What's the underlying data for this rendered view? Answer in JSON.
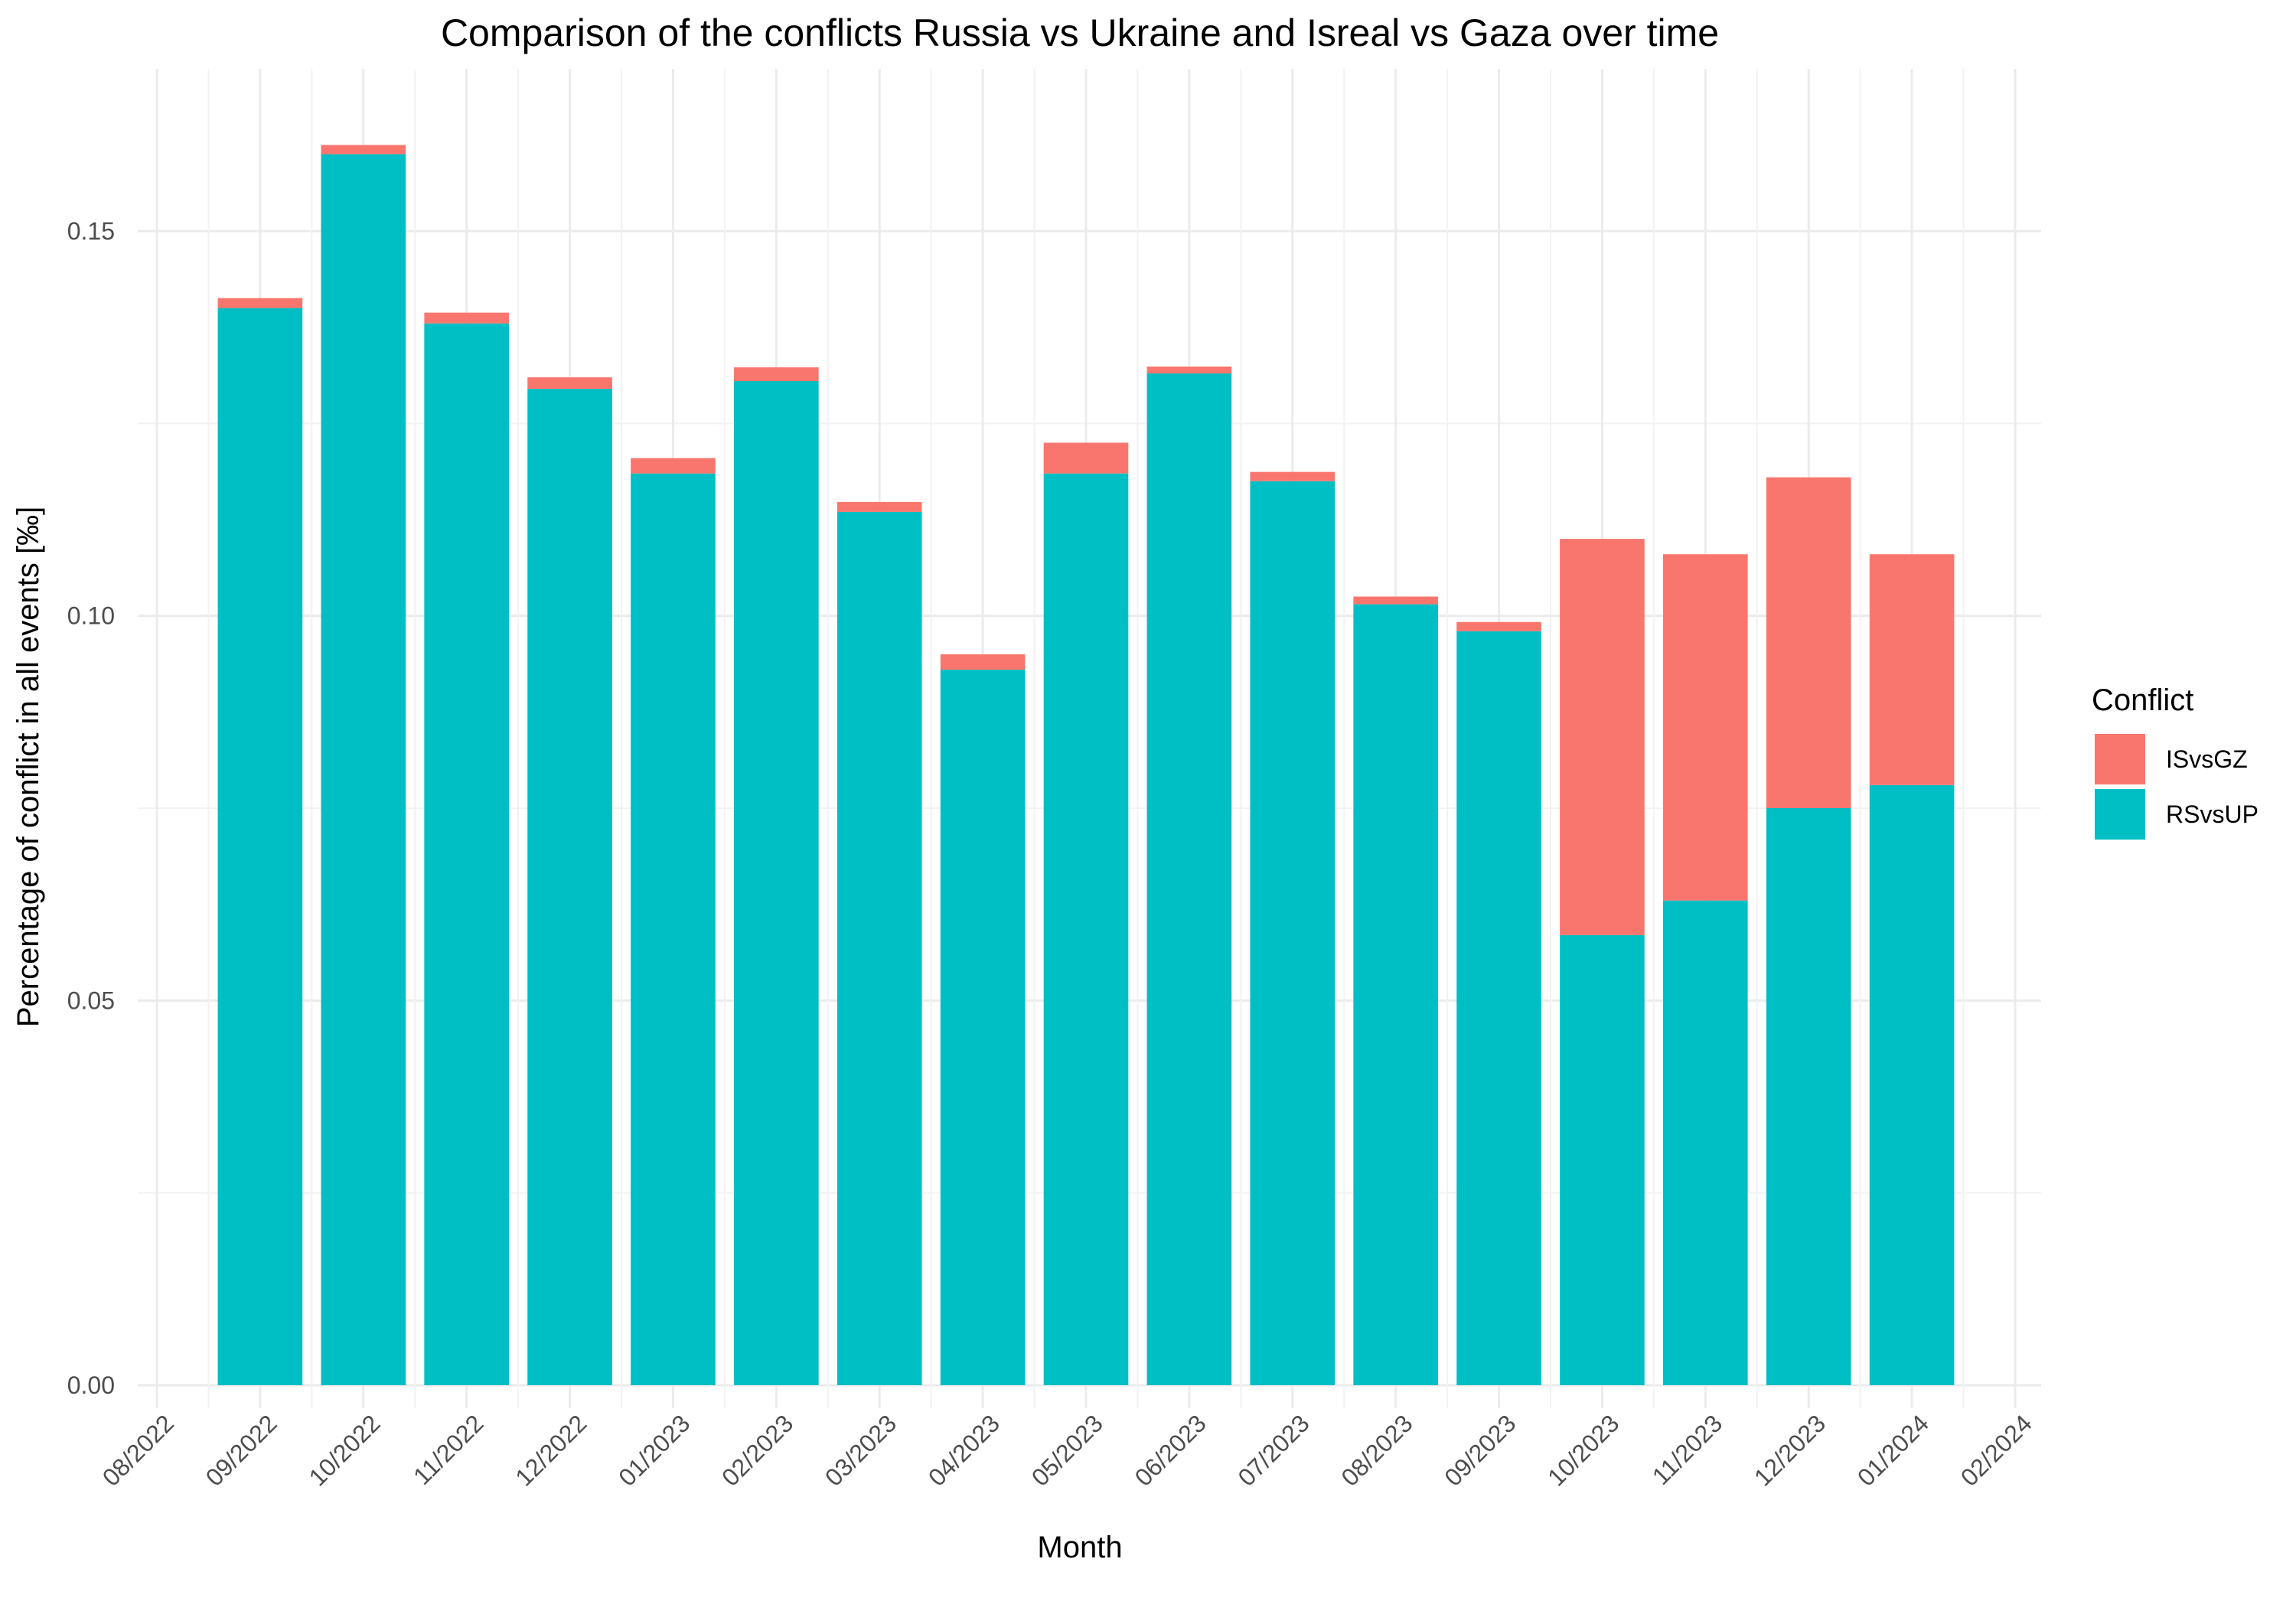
{
  "chart_data": {
    "type": "bar",
    "stacked": true,
    "title": "Comparison of the conflicts Russia vs Ukraine and Isreal vs Gaza over time",
    "xlabel": "Month",
    "ylabel": "Percentage of conflict in all events [‰]",
    "x_ticks": [
      "08/2022",
      "09/2022",
      "10/2022",
      "11/2022",
      "12/2022",
      "01/2023",
      "02/2023",
      "03/2023",
      "04/2023",
      "05/2023",
      "06/2023",
      "07/2023",
      "08/2023",
      "09/2023",
      "10/2023",
      "11/2023",
      "12/2023",
      "01/2024",
      "02/2024"
    ],
    "categories": [
      "09/2022",
      "10/2022",
      "11/2022",
      "12/2022",
      "01/2023",
      "02/2023",
      "03/2023",
      "04/2023",
      "05/2023",
      "06/2023",
      "07/2023",
      "08/2023",
      "09/2023",
      "10/2023",
      "11/2023",
      "12/2023",
      "01/2024"
    ],
    "y_ticks": [
      "0.00",
      "0.05",
      "0.10",
      "0.15"
    ],
    "ylim": [
      0,
      0.17
    ],
    "legend_title": "Conflict",
    "legend_position": "right",
    "grid": true,
    "series": [
      {
        "name": "RSvsUP",
        "color": "#00BFC4",
        "values": [
          0.14,
          0.16,
          0.138,
          0.1295,
          0.1185,
          0.1305,
          0.1135,
          0.093,
          0.1185,
          0.1315,
          0.1175,
          0.1015,
          0.098,
          0.0585,
          0.063,
          0.075,
          0.078
        ]
      },
      {
        "name": "ISvsGZ",
        "color": "#F8766D",
        "values": [
          0.0013,
          0.0012,
          0.0014,
          0.0015,
          0.002,
          0.0018,
          0.0013,
          0.002,
          0.004,
          0.0009,
          0.0012,
          0.001,
          0.0012,
          0.0515,
          0.045,
          0.043,
          0.03
        ]
      }
    ]
  }
}
